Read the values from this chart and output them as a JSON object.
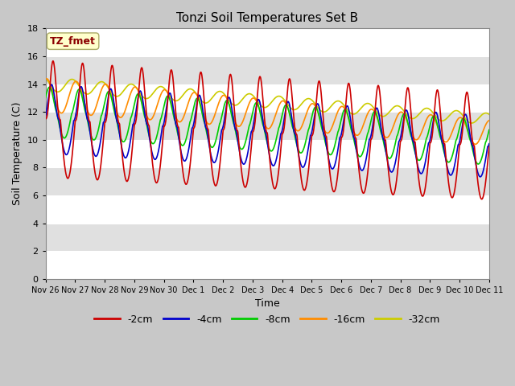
{
  "title": "Tonzi Soil Temperatures Set B",
  "xlabel": "Time",
  "ylabel": "Soil Temperature (C)",
  "ylim": [
    0,
    18
  ],
  "yticks": [
    0,
    2,
    4,
    6,
    8,
    10,
    12,
    14,
    16,
    18
  ],
  "annotation_label": "TZ_fmet",
  "annotation_color": "#8B0000",
  "annotation_bg": "#FFFFCC",
  "annotation_border": "#AAAA66",
  "fig_bg": "#C8C8C8",
  "plot_bg_light": "#FFFFFF",
  "plot_bg_dark": "#E0E0E0",
  "legend_entries": [
    "-2cm",
    "-4cm",
    "-8cm",
    "-16cm",
    "-32cm"
  ],
  "line_colors": [
    "#CC0000",
    "#0000CC",
    "#00CC00",
    "#FF8C00",
    "#CCCC00"
  ],
  "x_tick_labels": [
    "Nov 26",
    "Nov 27",
    "Nov 28",
    "Nov 29",
    "Nov 30",
    "Dec 1",
    "Dec 2",
    "Dec 3",
    "Dec 4",
    "Dec 5",
    "Dec 6",
    "Dec 7",
    "Dec 8",
    "Dec 9",
    "Dec 10",
    "Dec 11"
  ],
  "num_days": 15,
  "num_points": 1500
}
